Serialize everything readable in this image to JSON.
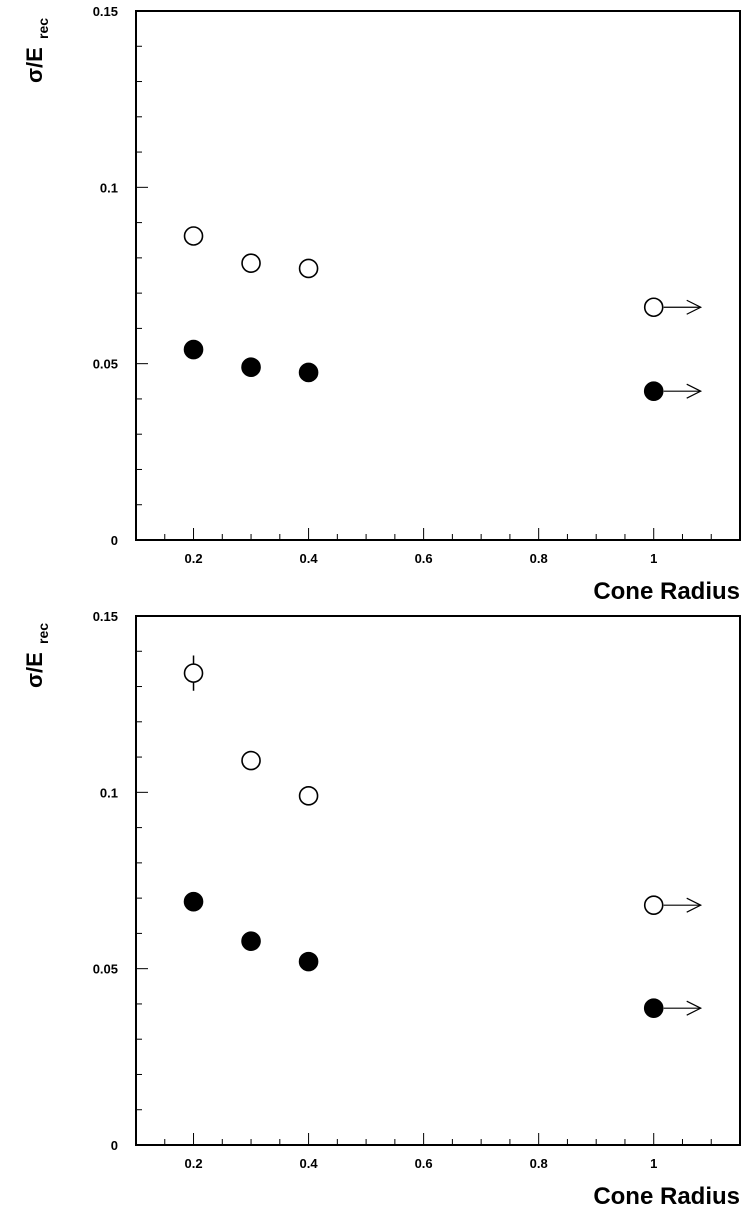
{
  "chart_data": [
    {
      "type": "scatter",
      "xlabel": "Cone Radius",
      "ylabel_main": "σ/E",
      "ylabel_sub": "rec",
      "xlim": [
        0.1,
        1.15
      ],
      "ylim": [
        0,
        0.15
      ],
      "x_ticks": [
        "0.2",
        "0.4",
        "0.6",
        "0.8",
        "1"
      ],
      "x_tick_values": [
        0.2,
        0.4,
        0.6,
        0.8,
        1.0
      ],
      "y_ticks": [
        "0",
        "0.05",
        "0.1",
        "0.15"
      ],
      "y_tick_values": [
        0,
        0.05,
        0.1,
        0.15
      ],
      "grid": false,
      "series": [
        {
          "marker": "open-circle",
          "x": [
            0.2,
            0.3,
            0.4,
            1.0
          ],
          "y": [
            0.0862,
            0.0785,
            0.077,
            0.066
          ],
          "err": [
            0.0005,
            0.0005,
            0.0005,
            0.0005
          ],
          "arrow_right_on_last": true
        },
        {
          "marker": "filled-circle",
          "x": [
            0.2,
            0.3,
            0.4,
            1.0
          ],
          "y": [
            0.054,
            0.049,
            0.0475,
            0.0422
          ],
          "err": [
            0.0004,
            0.0004,
            0.0004,
            0.0004
          ],
          "arrow_right_on_last": true
        }
      ]
    },
    {
      "type": "scatter",
      "xlabel": "Cone Radius",
      "ylabel_main": "σ/E",
      "ylabel_sub": "rec",
      "xlim": [
        0.1,
        1.15
      ],
      "ylim": [
        0,
        0.15
      ],
      "x_ticks": [
        "0.2",
        "0.4",
        "0.6",
        "0.8",
        "1"
      ],
      "x_tick_values": [
        0.2,
        0.4,
        0.6,
        0.8,
        1.0
      ],
      "y_ticks": [
        "0",
        "0.05",
        "0.1",
        "0.15"
      ],
      "y_tick_values": [
        0,
        0.05,
        0.1,
        0.15
      ],
      "grid": false,
      "series": [
        {
          "marker": "open-circle",
          "x": [
            0.2,
            0.3,
            0.4,
            1.0
          ],
          "y": [
            0.1338,
            0.109,
            0.099,
            0.068
          ],
          "err": [
            0.005,
            0.0025,
            0.001,
            0.0005
          ],
          "arrow_right_on_last": true
        },
        {
          "marker": "filled-circle",
          "x": [
            0.2,
            0.3,
            0.4,
            1.0
          ],
          "y": [
            0.069,
            0.0578,
            0.052,
            0.0388
          ],
          "err": [
            0.0008,
            0.0006,
            0.0005,
            0.0004
          ],
          "arrow_right_on_last": true
        }
      ]
    }
  ]
}
